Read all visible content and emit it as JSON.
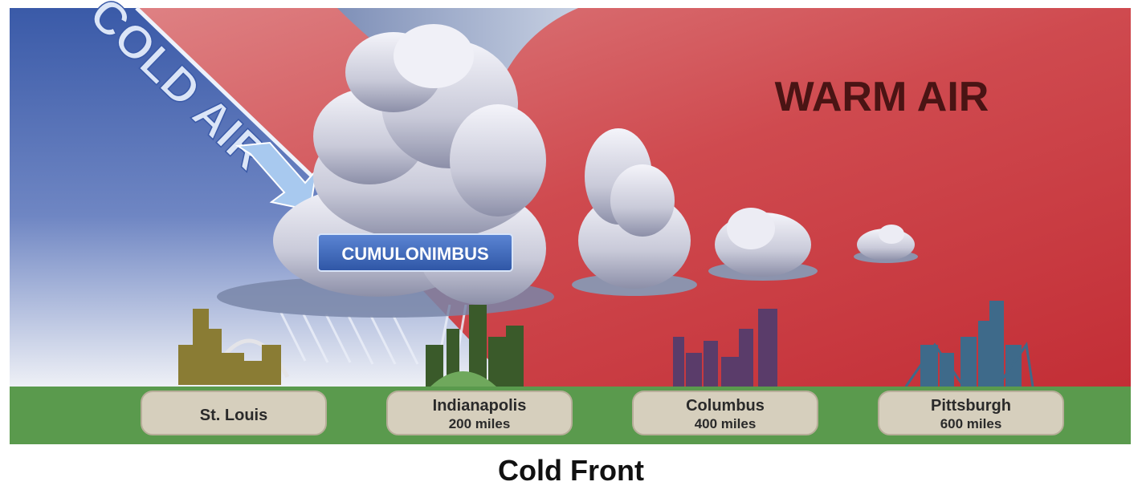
{
  "air_masses": {
    "cold": "COLD AIR",
    "warm": "WARM AIR"
  },
  "cloud_label": "CUMULONIMBUS",
  "cities": [
    {
      "name": "St. Louis",
      "distance": ""
    },
    {
      "name": "Indianapolis",
      "distance": "200 miles"
    },
    {
      "name": "Columbus",
      "distance": "400 miles"
    },
    {
      "name": "Pittsburgh",
      "distance": "600 miles"
    }
  ],
  "caption": "Cold Front",
  "colors": {
    "cold_air": "#3f5fa8",
    "warm_air": "#c8383f",
    "ground": "#5a9a4d",
    "label_plate": "#d6cfbd",
    "cloud_label_bg": "#3f67b8"
  }
}
